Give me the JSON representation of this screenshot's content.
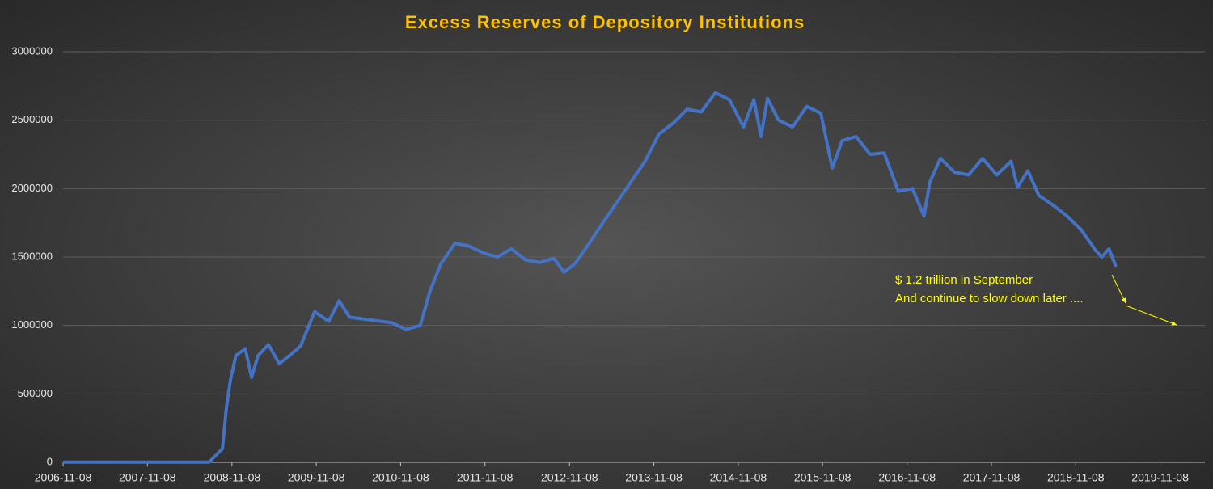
{
  "chart_data": {
    "type": "line",
    "title": "Excess Reserves of Depository Institutions",
    "annotations": [
      "$ 1.2 trillion in September",
      "And continue to slow down later ...."
    ],
    "annotation_color": "#ffff00",
    "x": [
      "2006-11-08",
      "2007-11-08",
      "2008-08-01",
      "2008-09-28",
      "2008-10-15",
      "2008-11-01",
      "2008-11-25",
      "2009-01-05",
      "2009-02-01",
      "2009-03-01",
      "2009-04-15",
      "2009-06-01",
      "2009-07-15",
      "2009-09-01",
      "2009-11-01",
      "2010-01-01",
      "2010-02-15",
      "2010-04-01",
      "2010-07-01",
      "2010-10-01",
      "2010-12-01",
      "2011-02-01",
      "2011-03-15",
      "2011-05-01",
      "2011-07-01",
      "2011-09-01",
      "2011-11-01",
      "2012-01-01",
      "2012-03-01",
      "2012-05-01",
      "2012-07-01",
      "2012-09-01",
      "2012-10-15",
      "2012-12-01",
      "2013-02-01",
      "2013-04-01",
      "2013-06-01",
      "2013-08-01",
      "2013-10-01",
      "2013-12-01",
      "2014-02-01",
      "2014-04-01",
      "2014-06-01",
      "2014-08-01",
      "2014-10-01",
      "2014-12-01",
      "2015-01-15",
      "2015-02-15",
      "2015-03-15",
      "2015-05-01",
      "2015-07-01",
      "2015-09-01",
      "2015-11-01",
      "2015-12-20",
      "2016-02-01",
      "2016-04-01",
      "2016-06-01",
      "2016-08-01",
      "2016-10-01",
      "2016-12-01",
      "2017-01-20",
      "2017-02-15",
      "2017-04-01",
      "2017-06-01",
      "2017-08-01",
      "2017-10-01",
      "2017-12-01",
      "2018-02-01",
      "2018-03-01",
      "2018-04-15",
      "2018-06-01",
      "2018-08-01",
      "2018-10-01",
      "2018-12-01",
      "2019-02-01",
      "2019-03-01",
      "2019-04-01",
      "2019-05-01"
    ],
    "series": [
      {
        "color": "#4472c4",
        "values": [
          2000,
          2000,
          2000,
          100000,
          400000,
          600000,
          780000,
          830000,
          620000,
          780000,
          860000,
          720000,
          780000,
          850000,
          1100000,
          1030000,
          1180000,
          1060000,
          1040000,
          1020000,
          970000,
          1000000,
          1250000,
          1450000,
          1600000,
          1580000,
          1530000,
          1500000,
          1560000,
          1480000,
          1460000,
          1490000,
          1390000,
          1450000,
          1600000,
          1750000,
          1900000,
          2050000,
          2200000,
          2400000,
          2480000,
          2580000,
          2560000,
          2700000,
          2650000,
          2450000,
          2650000,
          2380000,
          2660000,
          2500000,
          2450000,
          2600000,
          2550000,
          2150000,
          2350000,
          2380000,
          2250000,
          2260000,
          1980000,
          2000000,
          1800000,
          2050000,
          2220000,
          2120000,
          2100000,
          2220000,
          2100000,
          2200000,
          2010000,
          2130000,
          1950000,
          1880000,
          1800000,
          1700000,
          1550000,
          1500000,
          1560000,
          1430000
        ]
      }
    ],
    "xlim": [
      "2006-11-08",
      "2020-05-20"
    ],
    "xticks": [
      "2006-11-08",
      "2007-11-08",
      "2008-11-08",
      "2009-11-08",
      "2010-11-08",
      "2011-11-08",
      "2012-11-08",
      "2013-11-08",
      "2014-11-08",
      "2015-11-08",
      "2016-11-08",
      "2017-11-08",
      "2018-11-08",
      "2019-11-08"
    ],
    "ylim": [
      0,
      3000000
    ],
    "yticks": [
      0,
      500000,
      1000000,
      1500000,
      2000000,
      2500000,
      3000000
    ],
    "grid": true
  }
}
